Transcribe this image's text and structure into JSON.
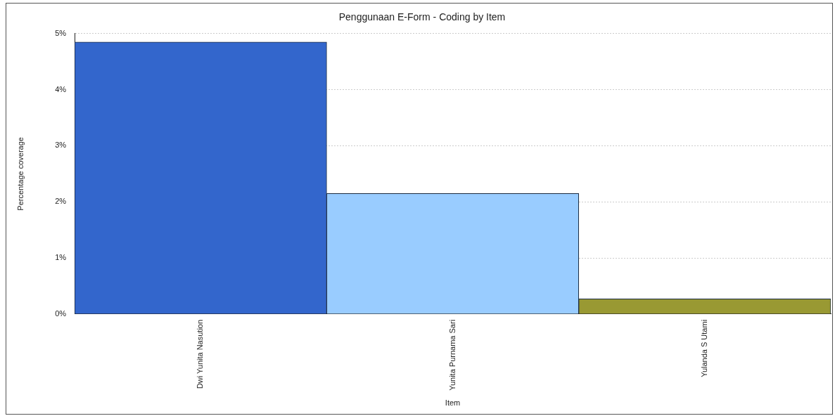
{
  "chart_data": {
    "type": "bar",
    "title": "Penggunaan E-Form - Coding by Item",
    "xlabel": "Item",
    "ylabel": "Percentage coverage",
    "categories": [
      "Dwi Yunita Nasution",
      "Yunita Purnama Sari",
      "Yulanda S Utami"
    ],
    "values": [
      4.85,
      2.15,
      0.27
    ],
    "colors": [
      "#3366cc",
      "#99ccff",
      "#999933"
    ],
    "ylim": [
      0,
      5
    ],
    "yticks": [
      {
        "value": 0,
        "label": "0%"
      },
      {
        "value": 1,
        "label": "1%"
      },
      {
        "value": 2,
        "label": "2%"
      },
      {
        "value": 3,
        "label": "3%"
      },
      {
        "value": 4,
        "label": "4%"
      },
      {
        "value": 5,
        "label": "5%"
      }
    ],
    "grid": "y",
    "legend": false
  }
}
